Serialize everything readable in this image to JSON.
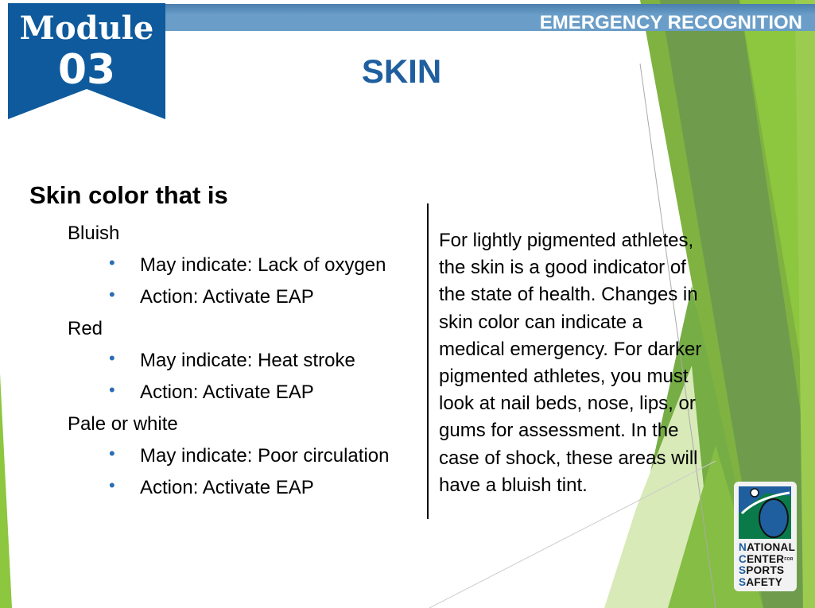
{
  "header": {
    "section": "EMERGENCY RECOGNITION",
    "module_label": "Module",
    "module_number": "03"
  },
  "title": "SKIN",
  "left": {
    "heading": "Skin color that is",
    "groups": [
      {
        "label": "Bluish",
        "bullets": [
          "May indicate: Lack of oxygen",
          "Action: Activate EAP"
        ]
      },
      {
        "label": "Red",
        "bullets": [
          "May indicate: Heat stroke",
          "Action: Activate EAP"
        ]
      },
      {
        "label": "Pale or white",
        "bullets": [
          "May indicate: Poor circulation",
          "Action: Activate EAP"
        ]
      }
    ]
  },
  "right": {
    "paragraph_lines": [
      "For lightly pigmented athletes,",
      "the skin is a good indicator of",
      "the state of health. Changes in",
      "skin color can indicate a",
      "medical emergency. For darker",
      "pigmented athletes, you must",
      "look at nail beds, nose, lips, or",
      "gums for assessment. In the",
      "case of shock, these areas will",
      "have a bluish tint."
    ]
  },
  "logo": {
    "lines": [
      "NATIONAL",
      "CENTER",
      "SPORTS",
      "SAFETY"
    ],
    "small": "FOR"
  },
  "colors": {
    "brand_blue": "#1f5fa0",
    "bar_blue": "#6a9ec8",
    "green_dark": "#6e9c4c",
    "green_light": "#8dc63f"
  }
}
